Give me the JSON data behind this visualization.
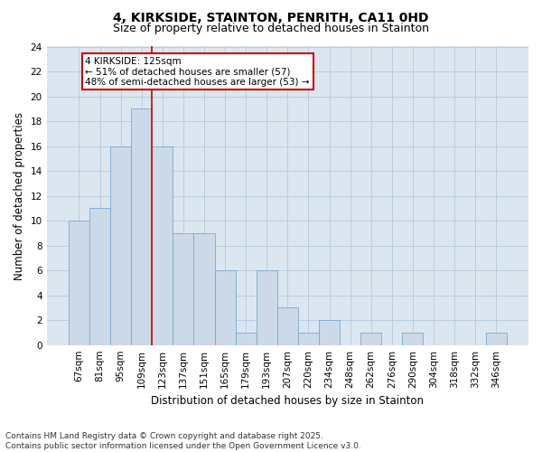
{
  "title1": "4, KIRKSIDE, STAINTON, PENRITH, CA11 0HD",
  "title2": "Size of property relative to detached houses in Stainton",
  "xlabel": "Distribution of detached houses by size in Stainton",
  "ylabel": "Number of detached properties",
  "categories": [
    "67sqm",
    "81sqm",
    "95sqm",
    "109sqm",
    "123sqm",
    "137sqm",
    "151sqm",
    "165sqm",
    "179sqm",
    "193sqm",
    "207sqm",
    "220sqm",
    "234sqm",
    "248sqm",
    "262sqm",
    "276sqm",
    "290sqm",
    "304sqm",
    "318sqm",
    "332sqm",
    "346sqm"
  ],
  "values": [
    10,
    11,
    16,
    19,
    16,
    9,
    9,
    6,
    1,
    6,
    3,
    1,
    2,
    0,
    1,
    0,
    1,
    0,
    0,
    0,
    1
  ],
  "bar_color": "#ccd9e8",
  "bar_edge_color": "#7aaace",
  "vline_color": "#cc0000",
  "vline_x_index": 4,
  "annotation_text": "4 KIRKSIDE: 125sqm\n← 51% of detached houses are smaller (57)\n48% of semi-detached houses are larger (53) →",
  "annotation_box_facecolor": "#ffffff",
  "annotation_box_edgecolor": "#cc0000",
  "ylim": [
    0,
    24
  ],
  "yticks": [
    0,
    2,
    4,
    6,
    8,
    10,
    12,
    14,
    16,
    18,
    20,
    22,
    24
  ],
  "grid_color": "#b8cde0",
  "background_color": "#dce6f0",
  "footer": "Contains HM Land Registry data © Crown copyright and database right 2025.\nContains public sector information licensed under the Open Government Licence v3.0.",
  "title_fontsize": 10,
  "subtitle_fontsize": 9,
  "axis_label_fontsize": 8.5,
  "tick_fontsize": 7.5,
  "annotation_fontsize": 7.5,
  "footer_fontsize": 6.5
}
